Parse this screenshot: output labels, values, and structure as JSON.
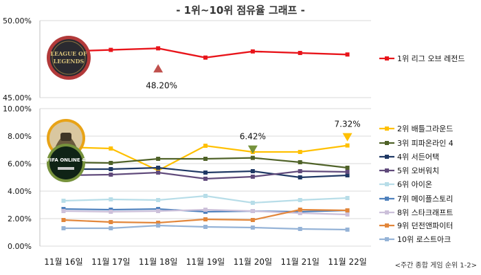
{
  "title": "- 1위~10위 점유율 그래프 -",
  "footnote": "<주간 종합 게임 순위 1-2>",
  "chart_data": [
    {
      "type": "line",
      "categories": [
        "11월 16일",
        "11월 17일",
        "11월 18일",
        "11월 19일",
        "11월 20일",
        "11월 21일",
        "11월 22일"
      ],
      "ylim": [
        45,
        50
      ],
      "yticks": [
        "45.00%",
        "50.00%"
      ],
      "series": [
        {
          "name": "1위 리그 오브 레전드",
          "color": "#e8141a",
          "values": [
            48.0,
            48.1,
            48.2,
            47.6,
            48.0,
            47.9,
            47.8
          ]
        }
      ],
      "annotation": {
        "text": "48.20%",
        "series": 0,
        "index": 2,
        "marker_color": "#c0504d",
        "marker": "triangle-up"
      },
      "icon": {
        "name": "league-of-legends-logo",
        "text": "LEAGUE OF LEGENDS",
        "series": 0
      }
    },
    {
      "type": "line",
      "categories": [
        "11월 16일",
        "11월 17일",
        "11월 18일",
        "11월 19일",
        "11월 20일",
        "11월 21일",
        "11월 22일"
      ],
      "ylim": [
        0,
        10
      ],
      "yticks": [
        "0.00%",
        "2.00%",
        "4.00%",
        "6.00%",
        "8.00%",
        "10.00%"
      ],
      "series": [
        {
          "name": "2위 배틀그라운드",
          "color": "#ffc000",
          "values": [
            7.2,
            7.1,
            5.5,
            7.3,
            6.85,
            6.85,
            7.32
          ]
        },
        {
          "name": "3위 피파온라인 4",
          "color": "#4f6228",
          "values": [
            6.1,
            6.05,
            6.35,
            6.35,
            6.42,
            6.1,
            5.7
          ]
        },
        {
          "name": "4위 서든어택",
          "color": "#1f3864",
          "values": [
            5.6,
            5.6,
            5.7,
            5.35,
            5.45,
            5.0,
            5.15
          ]
        },
        {
          "name": "5위 오버워치",
          "color": "#604a7b",
          "values": [
            5.15,
            5.2,
            5.35,
            4.9,
            5.05,
            5.45,
            5.4
          ]
        },
        {
          "name": "6위 아이온",
          "color": "#b7dde8",
          "values": [
            3.3,
            3.4,
            3.35,
            3.65,
            3.15,
            3.35,
            3.5
          ]
        },
        {
          "name": "7위 메이플스토리",
          "color": "#4f81bd",
          "values": [
            2.7,
            2.65,
            2.7,
            2.5,
            2.55,
            2.5,
            2.6
          ]
        },
        {
          "name": "8위 스타크래프트",
          "color": "#ccc0da",
          "values": [
            2.55,
            2.5,
            2.55,
            2.65,
            2.55,
            2.4,
            2.3
          ]
        },
        {
          "name": "9위 던전앤파이터",
          "color": "#e2863a",
          "values": [
            1.9,
            1.75,
            1.7,
            1.95,
            1.9,
            2.65,
            2.6
          ]
        },
        {
          "name": "10위 로스트아크",
          "color": "#95b3d7",
          "values": [
            1.3,
            1.3,
            1.5,
            1.4,
            1.35,
            1.25,
            1.2
          ]
        }
      ],
      "annotations": [
        {
          "text": "6.42%",
          "series": 1,
          "index": 4,
          "marker_color": "#76923c",
          "marker": "triangle-down"
        },
        {
          "text": "7.32%",
          "series": 0,
          "index": 6,
          "marker_color": "#ffc000",
          "marker": "triangle-down"
        }
      ],
      "icons": [
        {
          "name": "pubg-logo",
          "series": 0
        },
        {
          "name": "fifa-online-4-logo",
          "text": "FIFA ONLINE 4",
          "series": 1
        }
      ]
    }
  ]
}
